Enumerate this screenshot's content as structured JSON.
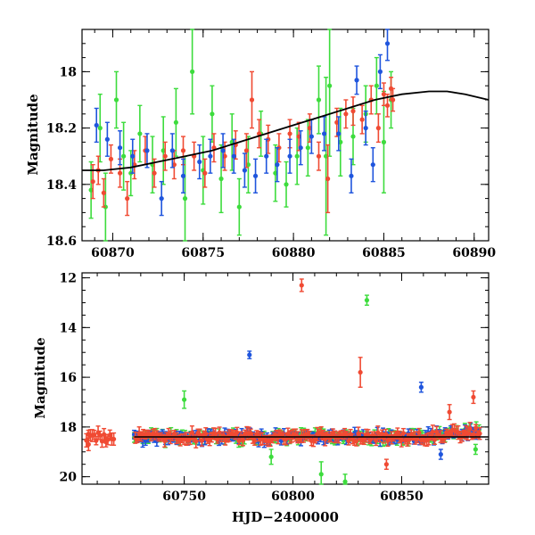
{
  "colors": {
    "g": "#3ddc3d",
    "r": "#f04a33",
    "b": "#1f55dd",
    "model": "#000000"
  },
  "chart_data": [
    {
      "type": "scatter",
      "xlabel": "",
      "ylabel": "Magnitude",
      "xlim": [
        60868.3,
        60890.8
      ],
      "ylim": [
        18.6,
        17.85
      ],
      "y_inverted": true,
      "xticks": [
        60870,
        60875,
        60880,
        60885,
        60890
      ],
      "xtick_labels": [
        "60870",
        "60875",
        "60880",
        "60885",
        "60890"
      ],
      "yticks": [
        18.6,
        18.4,
        18.2,
        18.0
      ],
      "ytick_labels": [
        "18.6",
        "18.4",
        "18.2",
        "18"
      ],
      "grid": false,
      "series": [
        {
          "band": "g",
          "color_key": "g",
          "points": [
            [
              60868.8,
              18.42,
              0.1
            ],
            [
              60869.3,
              18.2,
              0.12
            ],
            [
              60869.6,
              18.48,
              0.12
            ],
            [
              60870.2,
              18.1,
              0.1
            ],
            [
              60870.6,
              18.3,
              0.12
            ],
            [
              60871.0,
              18.36,
              0.08
            ],
            [
              60871.5,
              18.22,
              0.1
            ],
            [
              60872.2,
              18.33,
              0.1
            ],
            [
              60872.8,
              18.28,
              0.12
            ],
            [
              60873.5,
              18.18,
              0.12
            ],
            [
              60874.0,
              18.45,
              0.15
            ],
            [
              60874.4,
              18.0,
              0.15
            ],
            [
              60875.0,
              18.35,
              0.12
            ],
            [
              60875.5,
              18.15,
              0.1
            ],
            [
              60876.0,
              18.38,
              0.12
            ],
            [
              60876.6,
              18.25,
              0.1
            ],
            [
              60877.0,
              18.48,
              0.1
            ],
            [
              60877.5,
              18.33,
              0.1
            ],
            [
              60878.2,
              18.22,
              0.08
            ],
            [
              60879.0,
              18.36,
              0.1
            ],
            [
              60879.6,
              18.4,
              0.08
            ],
            [
              60880.2,
              18.3,
              0.1
            ],
            [
              60880.8,
              18.27,
              0.1
            ],
            [
              60881.4,
              18.1,
              0.12
            ],
            [
              60881.8,
              18.3,
              0.28
            ],
            [
              60882.0,
              18.05,
              0.25
            ],
            [
              60882.6,
              18.25,
              0.12
            ],
            [
              60883.3,
              18.23,
              0.1
            ],
            [
              60884.0,
              18.15,
              0.1
            ],
            [
              60884.6,
              18.05,
              0.1
            ],
            [
              60885.0,
              18.25,
              0.18
            ],
            [
              60885.4,
              18.1,
              0.1
            ]
          ]
        },
        {
          "band": "r",
          "color_key": "r",
          "points": [
            [
              60868.9,
              18.39,
              0.06
            ],
            [
              60869.2,
              18.35,
              0.05
            ],
            [
              60869.5,
              18.43,
              0.05
            ],
            [
              60869.9,
              18.31,
              0.05
            ],
            [
              60870.4,
              18.36,
              0.05
            ],
            [
              60870.8,
              18.45,
              0.06
            ],
            [
              60871.2,
              18.33,
              0.05
            ],
            [
              60871.8,
              18.28,
              0.05
            ],
            [
              60872.3,
              18.36,
              0.05
            ],
            [
              60872.9,
              18.3,
              0.05
            ],
            [
              60873.4,
              18.33,
              0.05
            ],
            [
              60873.9,
              18.28,
              0.05
            ],
            [
              60874.5,
              18.3,
              0.05
            ],
            [
              60875.1,
              18.36,
              0.05
            ],
            [
              60875.6,
              18.27,
              0.05
            ],
            [
              60876.2,
              18.3,
              0.05
            ],
            [
              60876.8,
              18.26,
              0.05
            ],
            [
              60877.4,
              18.28,
              0.06
            ],
            [
              60877.7,
              18.1,
              0.1
            ],
            [
              60878.1,
              18.22,
              0.05
            ],
            [
              60878.6,
              18.24,
              0.05
            ],
            [
              60879.2,
              18.27,
              0.05
            ],
            [
              60879.8,
              18.22,
              0.05
            ],
            [
              60880.3,
              18.23,
              0.05
            ],
            [
              60880.9,
              18.2,
              0.05
            ],
            [
              60881.4,
              18.3,
              0.05
            ],
            [
              60881.9,
              18.38,
              0.12
            ],
            [
              60882.4,
              18.18,
              0.05
            ],
            [
              60882.9,
              18.15,
              0.05
            ],
            [
              60883.3,
              18.14,
              0.05
            ],
            [
              60883.8,
              18.17,
              0.05
            ],
            [
              60884.3,
              18.1,
              0.05
            ],
            [
              60884.7,
              18.2,
              0.05
            ],
            [
              60885.0,
              18.08,
              0.04
            ],
            [
              60885.2,
              18.12,
              0.04
            ],
            [
              60885.4,
              18.06,
              0.04
            ],
            [
              60885.5,
              18.1,
              0.04
            ]
          ]
        },
        {
          "band": "b",
          "color_key": "b",
          "points": [
            [
              60869.1,
              18.19,
              0.06
            ],
            [
              60869.7,
              18.24,
              0.06
            ],
            [
              60870.4,
              18.27,
              0.06
            ],
            [
              60871.1,
              18.3,
              0.06
            ],
            [
              60871.9,
              18.28,
              0.06
            ],
            [
              60872.7,
              18.45,
              0.06
            ],
            [
              60873.3,
              18.28,
              0.06
            ],
            [
              60873.9,
              18.37,
              0.06
            ],
            [
              60874.8,
              18.32,
              0.06
            ],
            [
              60875.4,
              18.3,
              0.06
            ],
            [
              60876.1,
              18.28,
              0.06
            ],
            [
              60876.7,
              18.3,
              0.06
            ],
            [
              60877.3,
              18.35,
              0.06
            ],
            [
              60877.9,
              18.37,
              0.06
            ],
            [
              60878.5,
              18.3,
              0.06
            ],
            [
              60879.1,
              18.33,
              0.06
            ],
            [
              60879.8,
              18.3,
              0.06
            ],
            [
              60880.4,
              18.27,
              0.06
            ],
            [
              60881.0,
              18.23,
              0.06
            ],
            [
              60881.7,
              18.22,
              0.06
            ],
            [
              60882.5,
              18.22,
              0.06
            ],
            [
              60883.2,
              18.37,
              0.06
            ],
            [
              60883.5,
              18.03,
              0.05
            ],
            [
              60884.0,
              18.2,
              0.06
            ],
            [
              60884.4,
              18.33,
              0.06
            ],
            [
              60884.8,
              18.0,
              0.06
            ],
            [
              60885.2,
              17.9,
              0.06
            ]
          ]
        }
      ],
      "model_curve": [
        [
          60868.3,
          18.35
        ],
        [
          60869.5,
          18.35
        ],
        [
          60871.0,
          18.34
        ],
        [
          60872.5,
          18.32
        ],
        [
          60874.0,
          18.3
        ],
        [
          60875.5,
          18.28
        ],
        [
          60877.0,
          18.25
        ],
        [
          60878.5,
          18.22
        ],
        [
          60880.0,
          18.19
        ],
        [
          60881.5,
          18.16
        ],
        [
          60883.0,
          18.13
        ],
        [
          60884.5,
          18.1
        ],
        [
          60886.0,
          18.08
        ],
        [
          60887.5,
          18.07
        ],
        [
          60888.5,
          18.07
        ],
        [
          60889.5,
          18.08
        ],
        [
          60890.8,
          18.1
        ]
      ]
    },
    {
      "type": "scatter",
      "xlabel": "HJD−2400000",
      "ylabel": "Magnitude",
      "xlim": [
        60703,
        60890
      ],
      "ylim": [
        20.3,
        11.8
      ],
      "y_inverted": true,
      "xticks": [
        60750,
        60800,
        60850
      ],
      "xtick_labels": [
        "60750",
        "60800",
        "60850"
      ],
      "yticks": [
        20,
        18,
        16,
        14,
        12
      ],
      "ytick_labels": [
        "20",
        "18",
        "16",
        "14",
        "12"
      ],
      "grid": false,
      "baseline_mag": 18.4,
      "outliers": [
        {
          "band": "r",
          "x": 60804,
          "y": 12.3,
          "err": 0.25
        },
        {
          "band": "g",
          "x": 60834,
          "y": 12.9,
          "err": 0.2
        },
        {
          "band": "b",
          "x": 60780,
          "y": 15.1,
          "err": 0.15
        },
        {
          "band": "r",
          "x": 60831,
          "y": 15.8,
          "err": 0.6
        },
        {
          "band": "b",
          "x": 60859,
          "y": 16.4,
          "err": 0.2
        },
        {
          "band": "g",
          "x": 60750,
          "y": 16.9,
          "err": 0.35
        },
        {
          "band": "r",
          "x": 60883,
          "y": 16.8,
          "err": 0.25
        },
        {
          "band": "r",
          "x": 60872,
          "y": 17.4,
          "err": 0.3
        },
        {
          "band": "g",
          "x": 60813,
          "y": 19.9,
          "err": 0.5
        },
        {
          "band": "g",
          "x": 60824,
          "y": 20.2,
          "err": 0.3
        },
        {
          "band": "r",
          "x": 60843,
          "y": 19.5,
          "err": 0.2
        },
        {
          "band": "g",
          "x": 60790,
          "y": 19.2,
          "err": 0.3
        },
        {
          "band": "g",
          "x": 60884,
          "y": 18.9,
          "err": 0.2
        },
        {
          "band": "b",
          "x": 60868,
          "y": 19.1,
          "err": 0.2
        },
        {
          "band": "r",
          "x": 60706,
          "y": 18.7,
          "err": 0.25
        },
        {
          "band": "r",
          "x": 60714,
          "y": 18.6,
          "err": 0.2
        }
      ]
    }
  ]
}
